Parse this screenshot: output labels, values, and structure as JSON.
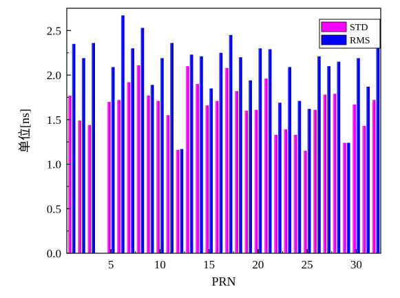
{
  "chart_data": {
    "type": "bar",
    "xlabel": "PRN",
    "ylabel": "单位[ns]",
    "x": [
      1,
      2,
      3,
      4,
      5,
      6,
      7,
      8,
      9,
      10,
      11,
      12,
      13,
      14,
      15,
      16,
      17,
      18,
      19,
      20,
      21,
      22,
      23,
      24,
      25,
      26,
      27,
      28,
      29,
      30,
      31,
      32
    ],
    "xlim": [
      0.5,
      32.5
    ],
    "ylim": [
      0.0,
      2.75
    ],
    "xticks": [
      5,
      10,
      15,
      20,
      25,
      30
    ],
    "yticks": [
      0.0,
      0.5,
      1.0,
      1.5,
      2.0,
      2.5
    ],
    "xtick_labels": [
      "5",
      "10",
      "15",
      "20",
      "25",
      "30"
    ],
    "ytick_labels": [
      "0.0",
      "0.5",
      "1.0",
      "1.5",
      "2.0",
      "2.5"
    ],
    "legend_position": "top-right",
    "grid": false,
    "series": [
      {
        "name": "STD",
        "color": "#ff00ff",
        "values": [
          1.77,
          1.49,
          1.44,
          null,
          1.7,
          1.72,
          1.92,
          2.11,
          1.77,
          1.71,
          1.55,
          1.16,
          2.1,
          1.9,
          1.66,
          1.71,
          2.08,
          1.82,
          1.6,
          1.61,
          1.96,
          1.33,
          1.39,
          1.33,
          1.15,
          1.61,
          1.78,
          1.79,
          1.24,
          1.67,
          1.43,
          1.72
        ]
      },
      {
        "name": "RMS",
        "color": "#0000ff",
        "values": [
          2.35,
          2.19,
          2.36,
          null,
          2.09,
          2.67,
          2.3,
          2.53,
          1.89,
          2.19,
          2.36,
          1.17,
          2.23,
          2.21,
          1.85,
          2.25,
          2.45,
          2.2,
          1.94,
          2.3,
          2.29,
          1.69,
          2.09,
          1.71,
          1.62,
          2.21,
          2.1,
          2.15,
          1.24,
          2.19,
          1.87,
          2.32
        ]
      }
    ]
  }
}
